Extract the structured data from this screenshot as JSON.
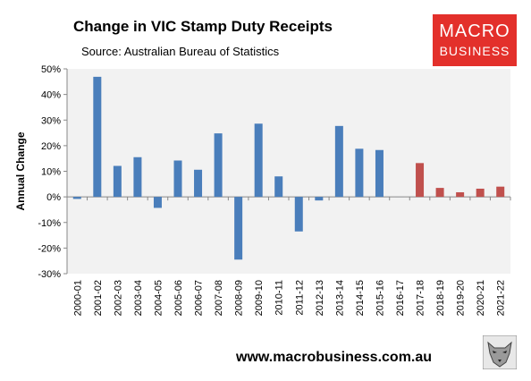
{
  "header": {
    "title": "Change in VIC Stamp Duty Receipts",
    "subtitle": "Source: Australian Bureau of Statistics"
  },
  "logo": {
    "line1": "MACRO",
    "line2": "BUSINESS"
  },
  "footer": {
    "website": "www.macrobusiness.com.au",
    "icon": "wolf-logo-icon"
  },
  "colors": {
    "actual": "#4a7ebb",
    "forecast": "#c0504d",
    "plot_bg": "#f2f2f2",
    "brand": "#e3302b"
  },
  "chart_data": {
    "type": "bar",
    "title": "Change in VIC Stamp Duty Receipts",
    "ylabel": "Annual Change",
    "xlabel": "",
    "ylim": [
      -0.3,
      0.5
    ],
    "yticks": [
      -0.3,
      -0.2,
      -0.1,
      0.0,
      0.1,
      0.2,
      0.3,
      0.4,
      0.5
    ],
    "ytick_labels": [
      "-30%",
      "-20%",
      "-10%",
      "0%",
      "10%",
      "20%",
      "30%",
      "40%",
      "50%"
    ],
    "grid": false,
    "categories": [
      "2000-01",
      "2001-02",
      "2002-03",
      "2003-04",
      "2004-05",
      "2005-06",
      "2006-07",
      "2007-08",
      "2008-09",
      "2009-10",
      "2010-11",
      "2011-12",
      "2012-13",
      "2013-14",
      "2014-15",
      "2015-16",
      "2016-17",
      "2017-18",
      "2018-19",
      "2019-20",
      "2020-21",
      "2021-22"
    ],
    "values": [
      -0.008,
      0.469,
      0.121,
      0.155,
      -0.043,
      0.142,
      0.106,
      0.248,
      -0.245,
      0.286,
      0.08,
      -0.135,
      -0.014,
      0.277,
      0.188,
      0.183,
      0.0,
      0.132,
      0.035,
      0.018,
      0.032,
      0.04
    ],
    "forecast_from_index": 17
  }
}
